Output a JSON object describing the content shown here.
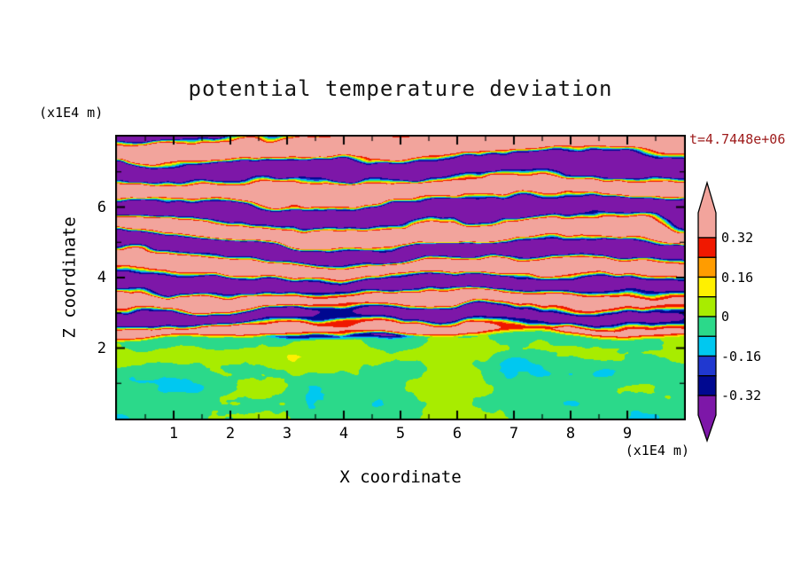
{
  "title": "potential temperature deviation",
  "time_label": "t=4.7448e+06",
  "axes": {
    "x": {
      "label": "X coordinate",
      "units": "(x1E4 m)",
      "ticks": [
        "1",
        "2",
        "3",
        "4",
        "5",
        "6",
        "7",
        "8",
        "9"
      ]
    },
    "z": {
      "label": "Z coordinate",
      "units": "(x1E4 m)",
      "ticks": [
        "2",
        "4",
        "6"
      ]
    }
  },
  "colorbar": {
    "labels": [
      "0.32",
      "0.16",
      "0",
      "-0.16",
      "-0.32"
    ]
  },
  "chart_data": {
    "type": "heatmap",
    "title": "potential temperature deviation",
    "xlabel": "X coordinate",
    "ylabel": "Z coordinate",
    "axis_units": "(x1E4 m)",
    "time_label": "t=4.7448e+06",
    "x_range": [
      0,
      10
    ],
    "z_range": [
      0,
      8
    ],
    "x_ticks": [
      1,
      2,
      3,
      4,
      5,
      6,
      7,
      8,
      9
    ],
    "z_ticks": [
      2,
      4,
      6
    ],
    "contour_levels": [
      -0.32,
      -0.24,
      -0.16,
      -0.08,
      0,
      0.08,
      0.16,
      0.24,
      0.32
    ],
    "colorbar_labeled_levels": [
      0.32,
      0.16,
      0,
      -0.16,
      -0.32
    ],
    "bands": [
      {
        "level": 0.32,
        "color": "#F2A49C",
        "name": "pink (theta' > 0.32)"
      },
      {
        "level": 0.24,
        "color": "#F01800",
        "name": "red"
      },
      {
        "level": 0.16,
        "color": "#FF9C00",
        "name": "orange"
      },
      {
        "level": 0.08,
        "color": "#FFF000",
        "name": "yellow"
      },
      {
        "level": 0.0,
        "color": "#A8EC00",
        "name": "chartreuse"
      },
      {
        "level": -0.08,
        "color": "#2BD98A",
        "name": "spring green"
      },
      {
        "level": -0.16,
        "color": "#00C8F0",
        "name": "cyan"
      },
      {
        "level": -0.24,
        "color": "#2038D0",
        "name": "blue"
      },
      {
        "level": -0.32,
        "color": "#000890",
        "name": "dark blue"
      },
      {
        "level": null,
        "color": "#7D17A8",
        "name": "purple (theta' < -0.32)"
      }
    ],
    "features": {
      "mixed_layer_top_z": 2.25,
      "description": "Convectively mixed layer (theta' near 0, spring-green with chartreuse patches) below z ~ 2.2x1E4 m; above it, horizontally stratified gravity-wave layers alternating between theta' > +0.32 (pink) and theta' < -0.32 (purple) with thin sharp transition filaments (red/orange/yellow/cyan/blue). Band spacing increases with height."
    },
    "generation": {
      "seed": 7,
      "band_chirp": {
        "k0": 9.0,
        "k1": 0.55
      },
      "wave_amplitude": 0.46,
      "sharpness": 2.8,
      "amp_noise": 0.5,
      "mixed_layer": {
        "top_z": 2.25,
        "interface_wave_amp": 0.35,
        "base_value": -0.02,
        "noise_amp": 0.26,
        "subinterface_boost": 0.07
      }
    }
  }
}
